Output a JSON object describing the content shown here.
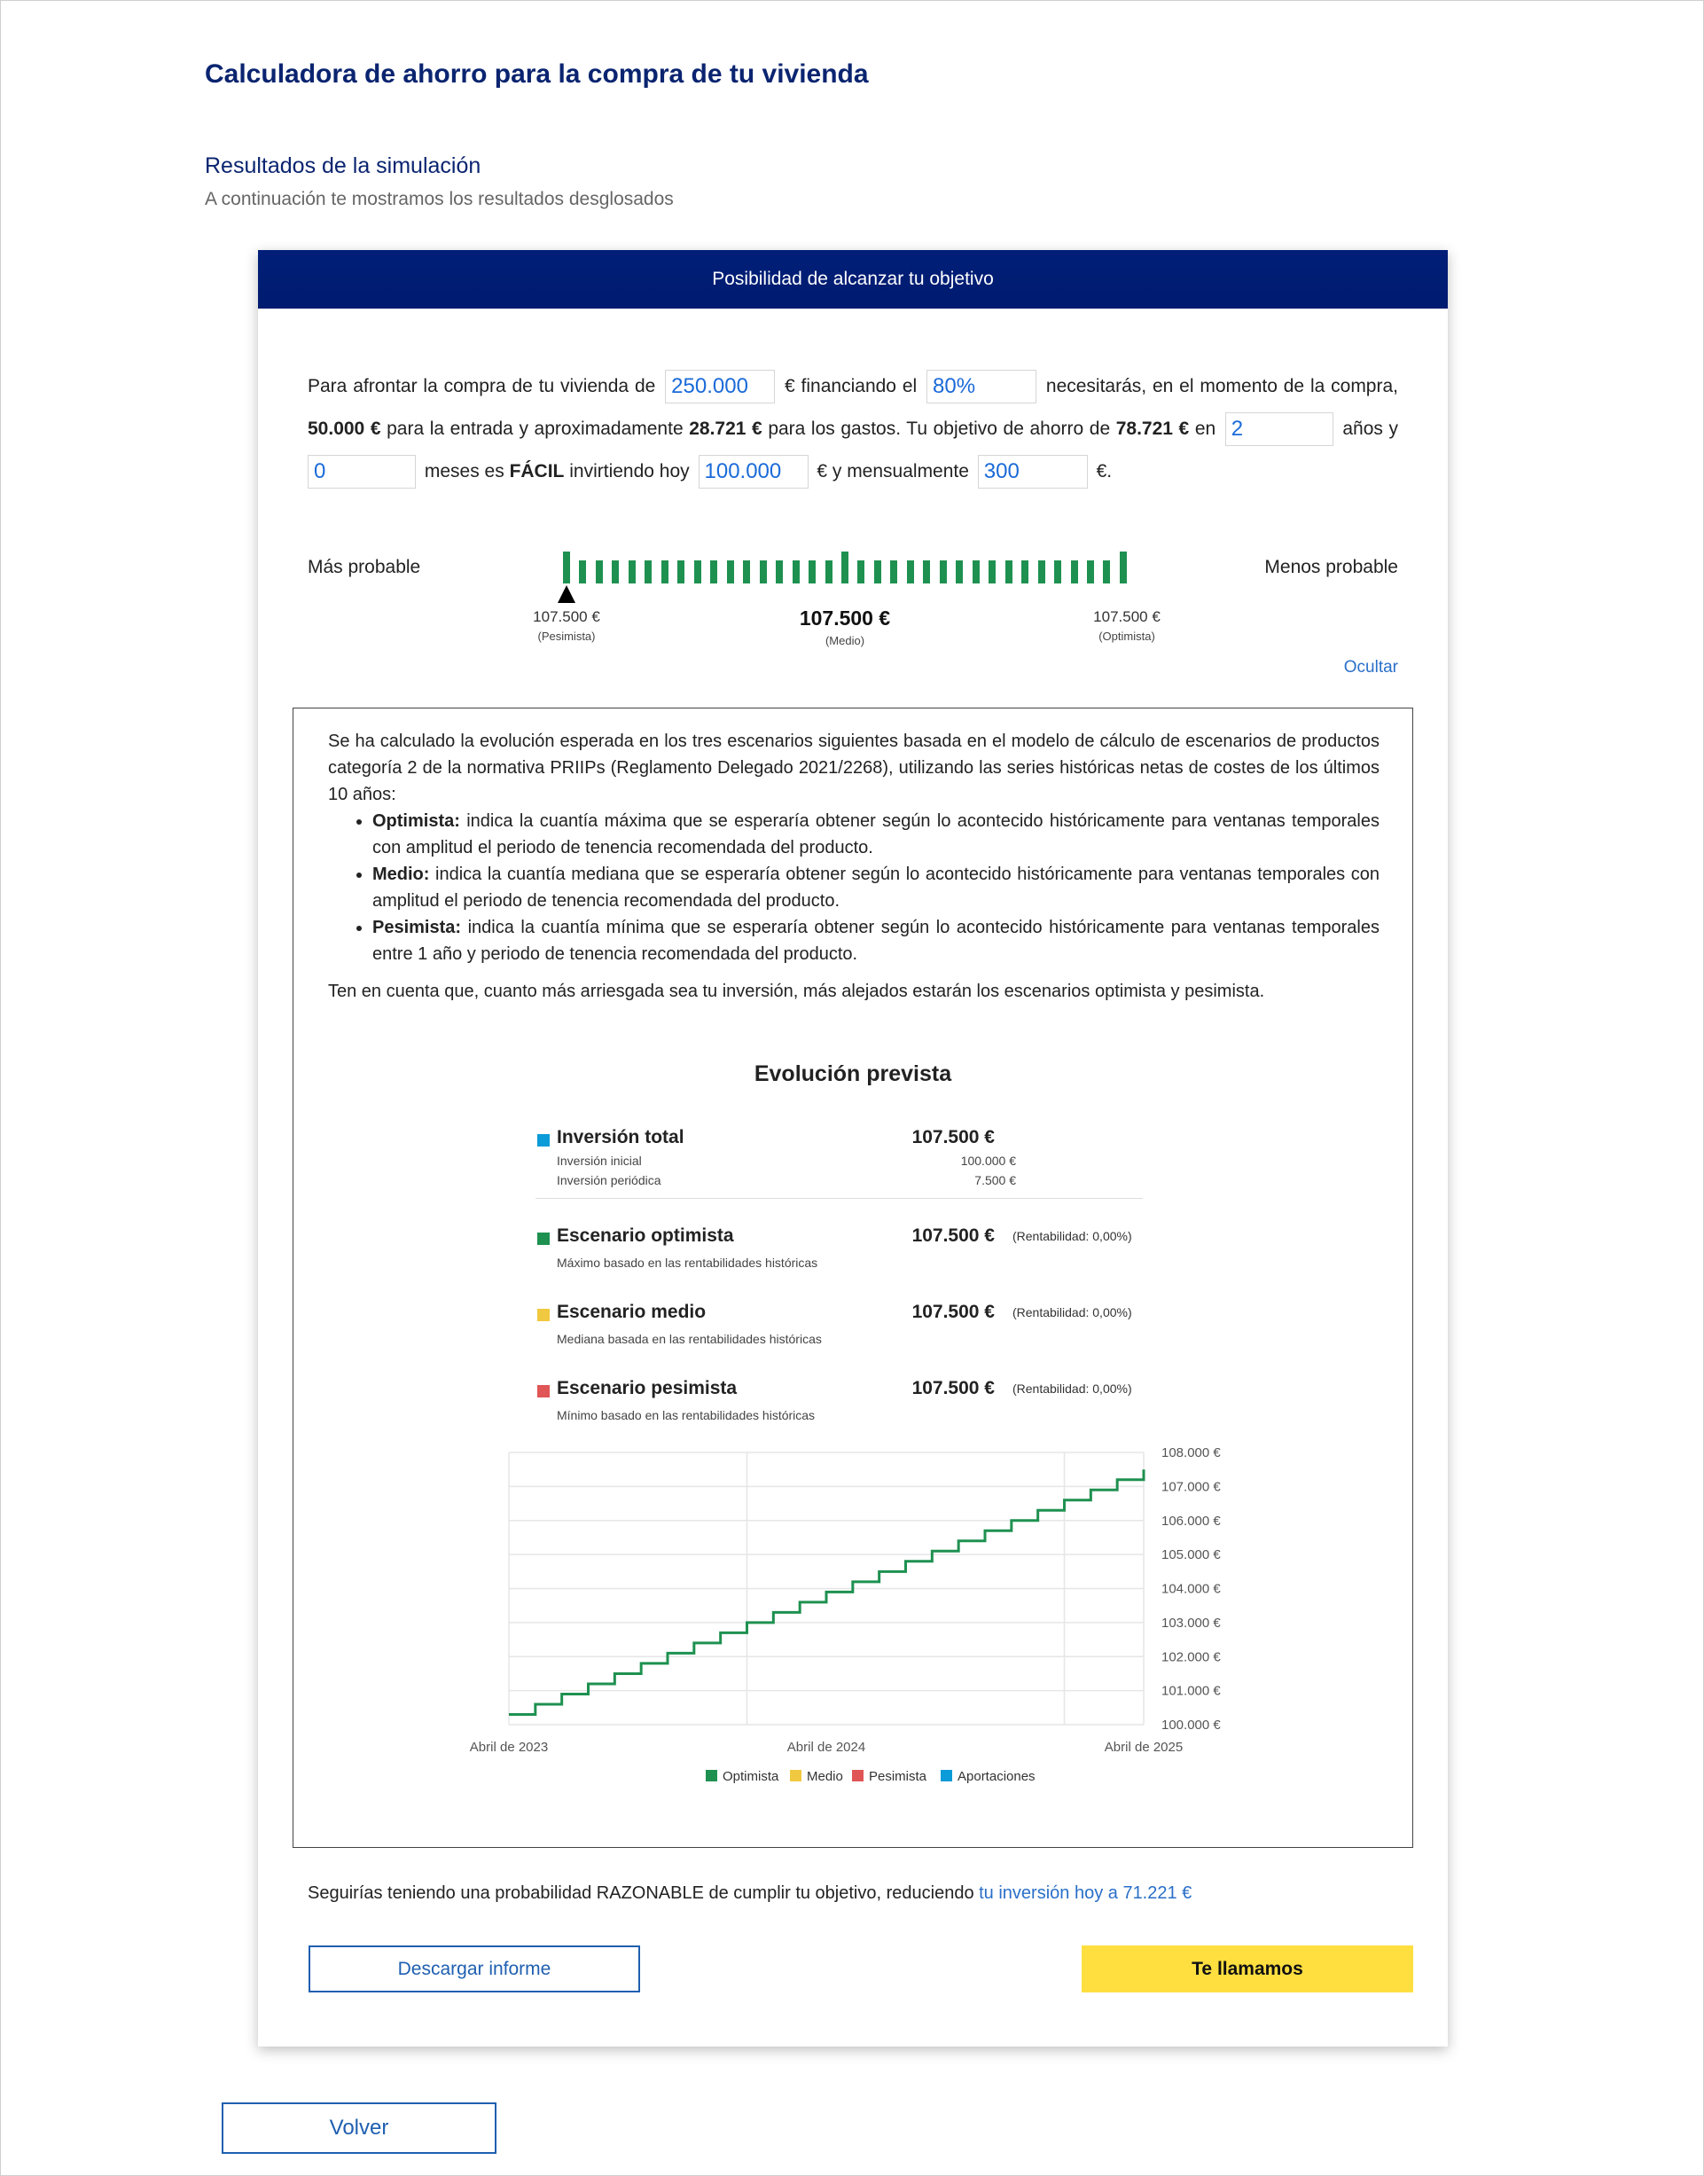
{
  "header": {
    "title": "Calculadora de ahorro para la compra de tu vivienda",
    "section_title": "Resultados de la simulación",
    "section_desc": "A continuación te mostramos los resultados desglosados"
  },
  "card": {
    "title": "Posibilidad de alcanzar tu objetivo"
  },
  "sentence": {
    "t1": "Para afrontar la compra de tu vivienda de",
    "price": "250.000",
    "t2": "€ financiando el",
    "financing": "80%",
    "t3": "necesitarás, en el momento de la compra,",
    "entry": "50.000 €",
    "t4": "para la entrada y aproximadamente",
    "expenses": "28.721 €",
    "t5": "para los gastos. Tu objetivo de ahorro de",
    "goal": "78.721 €",
    "t6": "en",
    "years": "2",
    "t7": "años y",
    "months": "0",
    "t8": "meses es",
    "difficulty": "FÁCIL",
    "t9": "invirtiendo hoy",
    "initial": "100.000",
    "t10": "€ y mensualmente",
    "monthly": "300",
    "t11": "€."
  },
  "probability": {
    "left_label": "Más probable",
    "right_label": "Menos probable",
    "pes_value": "107.500 €",
    "pes_label": "(Pesimista)",
    "med_value": "107.500 €",
    "med_label": "(Medio)",
    "opt_value": "107.500 €",
    "opt_label": "(Optimista)",
    "marker_position": "pesimista",
    "hide_link": "Ocultar"
  },
  "explanation": {
    "intro": "Se ha calculado la evolución esperada en los tres escenarios siguientes basada en el modelo de cálculo de escenarios de productos categoría 2 de la normativa PRIIPs (Reglamento Delegado 2021/2268), utilizando las series históricas netas de costes de los últimos 10 años:",
    "items": [
      {
        "term": "Optimista:",
        "text": "indica la cuantía máxima que se esperaría obtener según lo acontecido históricamente para ventanas temporales con amplitud el periodo de tenencia recomendada del producto."
      },
      {
        "term": "Medio:",
        "text": "indica la cuantía mediana que se esperaría obtener según lo acontecido históricamente para ventanas temporales con amplitud el periodo de tenencia recomendada del producto."
      },
      {
        "term": "Pesimista:",
        "text": "indica la cuantía mínima que se esperaría obtener según lo acontecido históricamente para ventanas temporales entre 1 año y periodo de tenencia recomendada del producto."
      }
    ],
    "note": "Ten en cuenta que, cuanto más arriesgada sea tu inversión, más alejados estarán los escenarios optimista y pesimista."
  },
  "summary": {
    "title": "Evolución prevista",
    "total": {
      "name": "Inversión total",
      "value": "107.500 €",
      "color": "#0a9bd8",
      "initial_label": "Inversión inicial",
      "initial_value": "100.000 €",
      "periodic_label": "Inversión periódica",
      "periodic_value": "7.500 €"
    },
    "scenarios": [
      {
        "name": "Escenario optimista",
        "value": "107.500 €",
        "rent": "(Rentabilidad: 0,00%)",
        "desc": "Máximo basado en las rentabilidades históricas",
        "color": "#1e9150"
      },
      {
        "name": "Escenario medio",
        "value": "107.500 €",
        "rent": "(Rentabilidad: 0,00%)",
        "desc": "Mediana basada en las rentabilidades históricas",
        "color": "#f1c940"
      },
      {
        "name": "Escenario pesimista",
        "value": "107.500 €",
        "rent": "(Rentabilidad: 0,00%)",
        "desc": "Mínimo basado en las rentabilidades históricas",
        "color": "#e05555"
      }
    ]
  },
  "chart_data": {
    "type": "line",
    "step": true,
    "x_start": "2023-04",
    "x_end": "2025-04",
    "x_ticks": [
      "Abril de 2023",
      "Abril de 2024",
      "Abril de 2025"
    ],
    "y_ticks": [
      "100.000 €",
      "101.000 €",
      "102.000 €",
      "103.000 €",
      "104.000 €",
      "105.000 €",
      "106.000 €",
      "107.000 €",
      "108.000 €"
    ],
    "ylim": [
      100000,
      108000
    ],
    "grid": true,
    "legend_position": "bottom",
    "series": [
      {
        "name": "Optimista",
        "color": "#1e9150",
        "values": [
          100300,
          100600,
          100900,
          101200,
          101500,
          101800,
          102100,
          102400,
          102700,
          103000,
          103300,
          103600,
          103900,
          104200,
          104500,
          104800,
          105100,
          105400,
          105700,
          106000,
          106300,
          106600,
          106900,
          107200,
          107500
        ]
      },
      {
        "name": "Medio",
        "color": "#f1c940",
        "values": []
      },
      {
        "name": "Pesimista",
        "color": "#e05555",
        "values": []
      },
      {
        "name": "Aportaciones",
        "color": "#0a9bd8",
        "values": []
      }
    ]
  },
  "footer": {
    "text": "Seguirías teniendo una probabilidad RAZONABLE de cumplir tu objetivo, reduciendo",
    "link": "tu inversión hoy a 71.221 €",
    "download": "Descargar informe",
    "call": "Te llamamos",
    "back": "Volver"
  }
}
